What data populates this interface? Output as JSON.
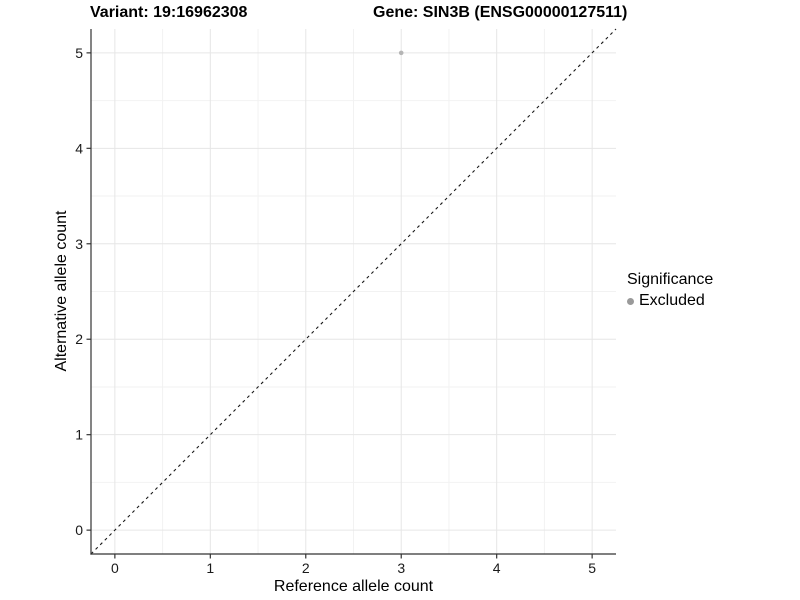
{
  "chart_data": {
    "type": "scatter",
    "title_left": "Variant: 19:16962308",
    "title_right": "Gene: SIN3B (ENSG00000127511)",
    "xlabel": "Reference allele count",
    "ylabel": "Alternative allele count",
    "xlim": [
      -0.25,
      5.25
    ],
    "ylim": [
      -0.25,
      5.25
    ],
    "x_ticks": [
      "0",
      "1",
      "2",
      "3",
      "4",
      "5"
    ],
    "y_ticks": [
      "0",
      "1",
      "2",
      "3",
      "4",
      "5"
    ],
    "minor_ticks": [
      0.5,
      1.5,
      2.5,
      3.5,
      4.5
    ],
    "grid": "on",
    "reference_line": {
      "kind": "identity y=x",
      "style": "dashed",
      "color": "#1a1a1a"
    },
    "series": [
      {
        "name": "Excluded",
        "points": [
          {
            "x": 3,
            "y": 5
          }
        ],
        "color": "#b5b5b5",
        "marker_radius": 2.3
      }
    ],
    "legend": {
      "title": "Significance",
      "position": "right",
      "items": [
        {
          "label": "Excluded",
          "color": "#9a9a9a"
        }
      ]
    },
    "colors": {
      "grid_major": "#e6e6e6",
      "grid_minor": "#f2f2f2",
      "axis_line": "#333333",
      "tick_label": "#1a1a1a"
    }
  }
}
